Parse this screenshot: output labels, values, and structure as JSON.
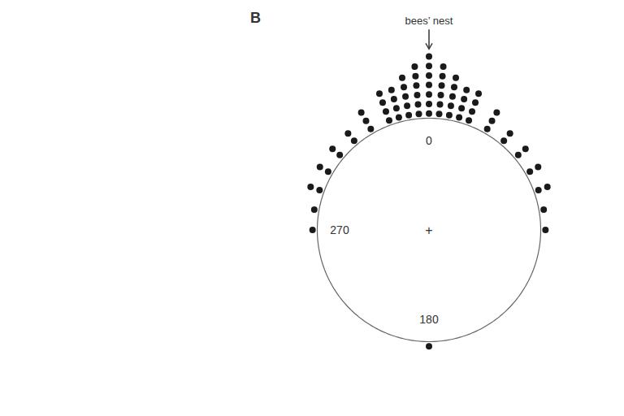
{
  "chart_data": {
    "type": "circular",
    "title": "B",
    "annotations": [
      "bees’ nest",
      "+"
    ],
    "x": [
      -90,
      -80,
      -70,
      -60,
      -50,
      -40,
      -30,
      -20,
      -15,
      -10,
      -5,
      0,
      5,
      10,
      15,
      20,
      30,
      40,
      50,
      60,
      70,
      80,
      90,
      180
    ],
    "values": [
      1,
      1,
      2,
      2,
      2,
      2,
      3,
      4,
      4,
      5,
      6,
      7,
      6,
      5,
      4,
      4,
      3,
      2,
      2,
      2,
      2,
      1,
      1,
      1
    ],
    "xticks": [
      0,
      180,
      270
    ],
    "color": "#1a1a1a"
  }
}
